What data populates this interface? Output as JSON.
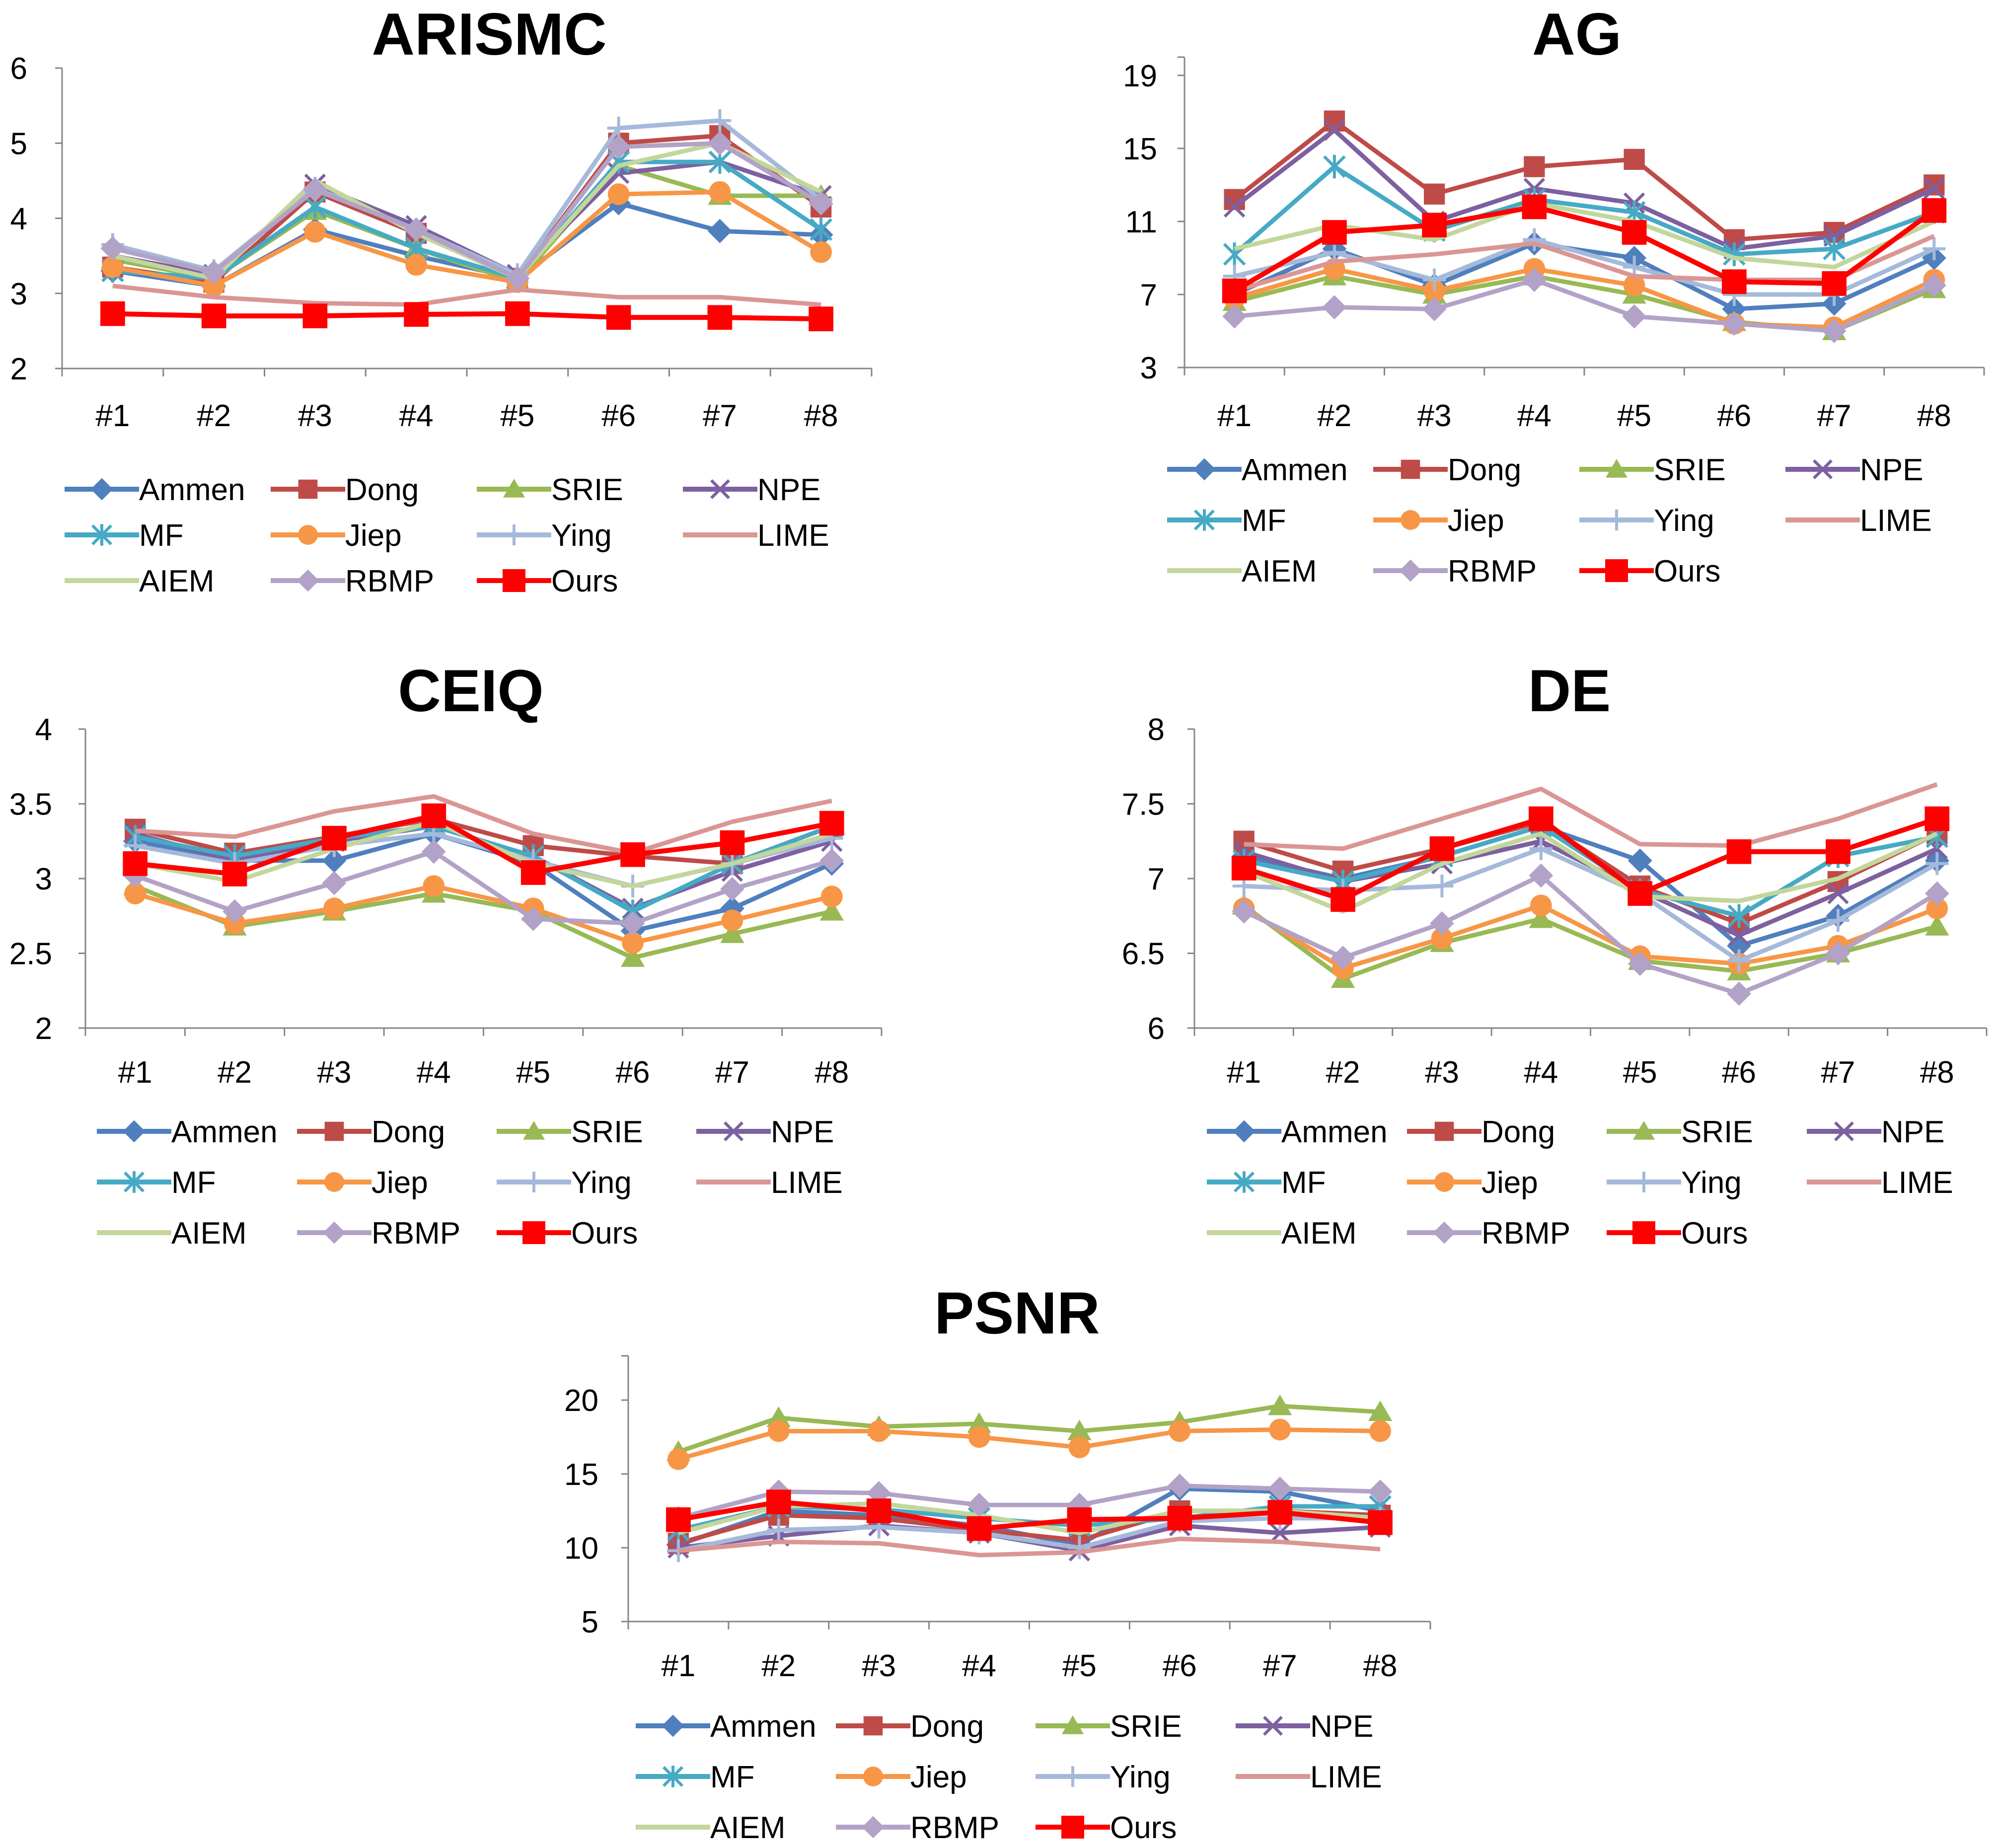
{
  "methods": [
    "Ammen",
    "Dong",
    "SRIE",
    "NPE",
    "MF",
    "Jiep",
    "Ying",
    "LIME",
    "AIEM",
    "RBMP",
    "Ours"
  ],
  "styles": {
    "Ammen": {
      "color": "#4F7FBD",
      "marker": "diamond"
    },
    "Dong": {
      "color": "#BE4B48",
      "marker": "square"
    },
    "SRIE": {
      "color": "#98B954",
      "marker": "triangle"
    },
    "NPE": {
      "color": "#7D60A0",
      "marker": "x"
    },
    "MF": {
      "color": "#46AAC5",
      "marker": "star"
    },
    "Jiep": {
      "color": "#F79646",
      "marker": "circle"
    },
    "Ying": {
      "color": "#A5B9DA",
      "marker": "plus"
    },
    "LIME": {
      "color": "#DA9694",
      "marker": "none"
    },
    "AIEM": {
      "color": "#C3D69B",
      "marker": "none"
    },
    "RBMP": {
      "color": "#B3A2C7",
      "marker": "diamond"
    },
    "Ours": {
      "color": "#FF0000",
      "marker": "square"
    }
  },
  "chart_data": [
    {
      "type": "line",
      "title": "ARISMC",
      "categories": [
        "#1",
        "#2",
        "#3",
        "#4",
        "#5",
        "#6",
        "#7",
        "#8"
      ],
      "ylim": [
        2,
        6
      ],
      "yticks": [
        "2",
        "3",
        "4",
        "5",
        "6"
      ],
      "legend_position": "below",
      "series": [
        {
          "name": "Ammen",
          "values": [
            3.3,
            3.1,
            3.85,
            3.5,
            3.2,
            4.2,
            3.83,
            3.78
          ]
        },
        {
          "name": "Dong",
          "values": [
            3.35,
            3.15,
            4.35,
            3.8,
            3.2,
            5.0,
            5.1,
            4.15
          ]
        },
        {
          "name": "SRIE",
          "values": [
            3.45,
            3.2,
            4.1,
            3.6,
            3.15,
            4.7,
            4.3,
            4.3
          ]
        },
        {
          "name": "NPE",
          "values": [
            3.5,
            3.25,
            4.45,
            3.9,
            3.25,
            4.6,
            4.75,
            4.3
          ]
        },
        {
          "name": "MF",
          "values": [
            3.3,
            3.2,
            4.15,
            3.6,
            3.2,
            4.75,
            4.75,
            3.85
          ]
        },
        {
          "name": "Jiep",
          "values": [
            3.35,
            3.1,
            3.82,
            3.38,
            3.15,
            4.32,
            4.35,
            3.55
          ]
        },
        {
          "name": "Ying",
          "values": [
            3.65,
            3.3,
            4.4,
            3.85,
            3.25,
            5.2,
            5.3,
            4.25
          ]
        },
        {
          "name": "LIME",
          "values": [
            3.1,
            2.95,
            2.87,
            2.85,
            3.05,
            2.95,
            2.95,
            2.85
          ]
        },
        {
          "name": "AIEM",
          "values": [
            3.5,
            3.2,
            4.5,
            3.8,
            3.2,
            4.7,
            5.0,
            4.35
          ]
        },
        {
          "name": "RBMP",
          "values": [
            3.6,
            3.28,
            4.38,
            3.85,
            3.2,
            4.95,
            5.0,
            4.2
          ]
        },
        {
          "name": "Ours",
          "values": [
            2.73,
            2.7,
            2.7,
            2.72,
            2.73,
            2.68,
            2.68,
            2.66
          ]
        }
      ]
    },
    {
      "type": "line",
      "title": "AG",
      "categories": [
        "#1",
        "#2",
        "#3",
        "#4",
        "#5",
        "#6",
        "#7",
        "#8"
      ],
      "ylim": [
        3,
        20
      ],
      "yticks": [
        "3",
        "7",
        "11",
        "15",
        "19"
      ],
      "legend_position": "below",
      "series": [
        {
          "name": "Ammen",
          "values": [
            7.0,
            9.5,
            7.5,
            9.8,
            9.0,
            6.2,
            6.5,
            9.0
          ]
        },
        {
          "name": "Dong",
          "values": [
            12.2,
            16.5,
            12.5,
            14.0,
            14.4,
            10.0,
            10.4,
            13.0
          ]
        },
        {
          "name": "SRIE",
          "values": [
            6.6,
            8.0,
            7.0,
            8.0,
            7.0,
            5.5,
            5.0,
            7.3
          ]
        },
        {
          "name": "NPE",
          "values": [
            11.8,
            16.0,
            11.0,
            12.8,
            12.0,
            9.5,
            10.2,
            12.8
          ]
        },
        {
          "name": "MF",
          "values": [
            9.2,
            14.0,
            10.5,
            12.2,
            11.5,
            9.2,
            9.5,
            11.5
          ]
        },
        {
          "name": "Jiep",
          "values": [
            6.8,
            8.4,
            7.2,
            8.4,
            7.5,
            5.4,
            5.2,
            7.8
          ]
        },
        {
          "name": "Ying",
          "values": [
            8.0,
            9.3,
            7.8,
            10.0,
            8.5,
            7.0,
            7.0,
            9.5
          ]
        },
        {
          "name": "LIME",
          "values": [
            7.2,
            8.8,
            9.2,
            9.8,
            8.0,
            7.8,
            7.8,
            10.2
          ]
        },
        {
          "name": "AIEM",
          "values": [
            9.5,
            10.8,
            10.0,
            12.0,
            11.0,
            9.0,
            8.5,
            11.0
          ]
        },
        {
          "name": "RBMP",
          "values": [
            5.8,
            6.3,
            6.2,
            7.8,
            5.8,
            5.4,
            5.0,
            7.5
          ]
        },
        {
          "name": "Ours",
          "values": [
            7.2,
            10.4,
            10.8,
            11.8,
            10.4,
            7.7,
            7.6,
            11.6
          ]
        }
      ]
    },
    {
      "type": "line",
      "title": "CEIQ",
      "categories": [
        "#1",
        "#2",
        "#3",
        "#4",
        "#5",
        "#6",
        "#7",
        "#8"
      ],
      "ylim": [
        2,
        4
      ],
      "yticks": [
        "2",
        "2.5",
        "3",
        "3.5",
        "4"
      ],
      "legend_position": "below",
      "series": [
        {
          "name": "Ammen",
          "values": [
            3.25,
            3.12,
            3.12,
            3.3,
            3.1,
            2.65,
            2.8,
            3.1
          ]
        },
        {
          "name": "Dong",
          "values": [
            3.33,
            3.17,
            3.28,
            3.4,
            3.22,
            3.15,
            3.1,
            3.35
          ]
        },
        {
          "name": "SRIE",
          "values": [
            2.95,
            2.68,
            2.78,
            2.9,
            2.78,
            2.47,
            2.63,
            2.78
          ]
        },
        {
          "name": "NPE",
          "values": [
            3.3,
            3.12,
            3.25,
            3.35,
            3.15,
            2.8,
            3.05,
            3.25
          ]
        },
        {
          "name": "MF",
          "values": [
            3.28,
            3.15,
            3.27,
            3.35,
            3.15,
            2.78,
            3.1,
            3.35
          ]
        },
        {
          "name": "Jiep",
          "values": [
            2.9,
            2.7,
            2.8,
            2.95,
            2.8,
            2.57,
            2.72,
            2.88
          ]
        },
        {
          "name": "Ying",
          "values": [
            3.22,
            3.1,
            3.22,
            3.3,
            3.12,
            2.95,
            3.1,
            3.27
          ]
        },
        {
          "name": "LIME",
          "values": [
            3.32,
            3.28,
            3.45,
            3.55,
            3.3,
            3.17,
            3.38,
            3.52
          ]
        },
        {
          "name": "AIEM",
          "values": [
            3.1,
            2.98,
            3.2,
            3.38,
            3.1,
            2.95,
            3.1,
            3.3
          ]
        },
        {
          "name": "RBMP",
          "values": [
            3.02,
            2.78,
            2.97,
            3.18,
            2.73,
            2.7,
            2.93,
            3.12
          ]
        },
        {
          "name": "Ours",
          "values": [
            3.1,
            3.03,
            3.27,
            3.42,
            3.04,
            3.16,
            3.24,
            3.37
          ]
        }
      ]
    },
    {
      "type": "line",
      "title": "DE",
      "categories": [
        "#1",
        "#2",
        "#3",
        "#4",
        "#5",
        "#6",
        "#7",
        "#8"
      ],
      "ylim": [
        6,
        8
      ],
      "yticks": [
        "6",
        "6.5",
        "7",
        "7.5",
        "8"
      ],
      "legend_position": "below",
      "series": [
        {
          "name": "Ammen",
          "values": [
            7.15,
            7.0,
            7.15,
            7.35,
            7.12,
            6.55,
            6.75,
            7.12
          ]
        },
        {
          "name": "Dong",
          "values": [
            7.25,
            7.05,
            7.2,
            7.38,
            6.95,
            6.7,
            6.98,
            7.3
          ]
        },
        {
          "name": "SRIE",
          "values": [
            6.82,
            6.33,
            6.57,
            6.73,
            6.45,
            6.38,
            6.5,
            6.68
          ]
        },
        {
          "name": "NPE",
          "values": [
            7.18,
            6.98,
            7.1,
            7.25,
            6.92,
            6.62,
            6.9,
            7.2
          ]
        },
        {
          "name": "MF",
          "values": [
            7.12,
            6.98,
            7.15,
            7.35,
            6.92,
            6.75,
            7.15,
            7.28
          ]
        },
        {
          "name": "Jiep",
          "values": [
            6.8,
            6.4,
            6.6,
            6.82,
            6.48,
            6.43,
            6.55,
            6.8
          ]
        },
        {
          "name": "Ying",
          "values": [
            6.95,
            6.92,
            6.95,
            7.2,
            6.9,
            6.45,
            6.72,
            7.1
          ]
        },
        {
          "name": "LIME",
          "values": [
            7.23,
            7.2,
            7.4,
            7.6,
            7.23,
            7.22,
            7.4,
            7.63
          ]
        },
        {
          "name": "AIEM",
          "values": [
            7.05,
            6.78,
            7.1,
            7.3,
            6.88,
            6.85,
            7.0,
            7.3
          ]
        },
        {
          "name": "RBMP",
          "values": [
            6.78,
            6.47,
            6.7,
            7.02,
            6.43,
            6.23,
            6.5,
            6.9
          ]
        },
        {
          "name": "Ours",
          "values": [
            7.07,
            6.86,
            7.2,
            7.4,
            6.9,
            7.18,
            7.18,
            7.4
          ]
        }
      ]
    },
    {
      "type": "line",
      "title": "PSNR",
      "categories": [
        "#1",
        "#2",
        "#3",
        "#4",
        "#5",
        "#6",
        "#7",
        "#8"
      ],
      "ylim": [
        5,
        23
      ],
      "yticks": [
        "5",
        "10",
        "15",
        "20"
      ],
      "legend_position": "below",
      "series": [
        {
          "name": "Ammen",
          "values": [
            10.2,
            12.5,
            12.2,
            11.5,
            10.2,
            14.0,
            13.8,
            12.5
          ]
        },
        {
          "name": "Dong",
          "values": [
            10.3,
            12.2,
            12.0,
            11.2,
            10.5,
            12.5,
            12.5,
            12.2
          ]
        },
        {
          "name": "SRIE",
          "values": [
            16.5,
            18.8,
            18.2,
            18.4,
            17.9,
            18.5,
            19.6,
            19.2
          ]
        },
        {
          "name": "NPE",
          "values": [
            10.0,
            10.8,
            11.5,
            11.0,
            9.8,
            11.5,
            11.0,
            11.4
          ]
        },
        {
          "name": "MF",
          "values": [
            11.2,
            12.8,
            12.6,
            12.0,
            11.5,
            12.0,
            12.8,
            12.8
          ]
        },
        {
          "name": "Jiep",
          "values": [
            16.0,
            17.9,
            17.9,
            17.5,
            16.8,
            17.9,
            18.0,
            17.9
          ]
        },
        {
          "name": "Ying",
          "values": [
            9.8,
            11.2,
            11.4,
            11.0,
            10.0,
            11.8,
            12.0,
            12.0
          ]
        },
        {
          "name": "LIME",
          "values": [
            9.8,
            10.4,
            10.3,
            9.5,
            9.7,
            10.6,
            10.4,
            9.9
          ]
        },
        {
          "name": "AIEM",
          "values": [
            11.0,
            12.8,
            13.0,
            12.2,
            11.0,
            12.5,
            12.5,
            12.0
          ]
        },
        {
          "name": "RBMP",
          "values": [
            12.0,
            13.8,
            13.7,
            12.9,
            12.9,
            14.2,
            14.0,
            13.8
          ]
        },
        {
          "name": "Ours",
          "values": [
            11.9,
            13.1,
            12.5,
            11.3,
            11.9,
            12.0,
            12.4,
            11.7
          ]
        }
      ]
    }
  ]
}
